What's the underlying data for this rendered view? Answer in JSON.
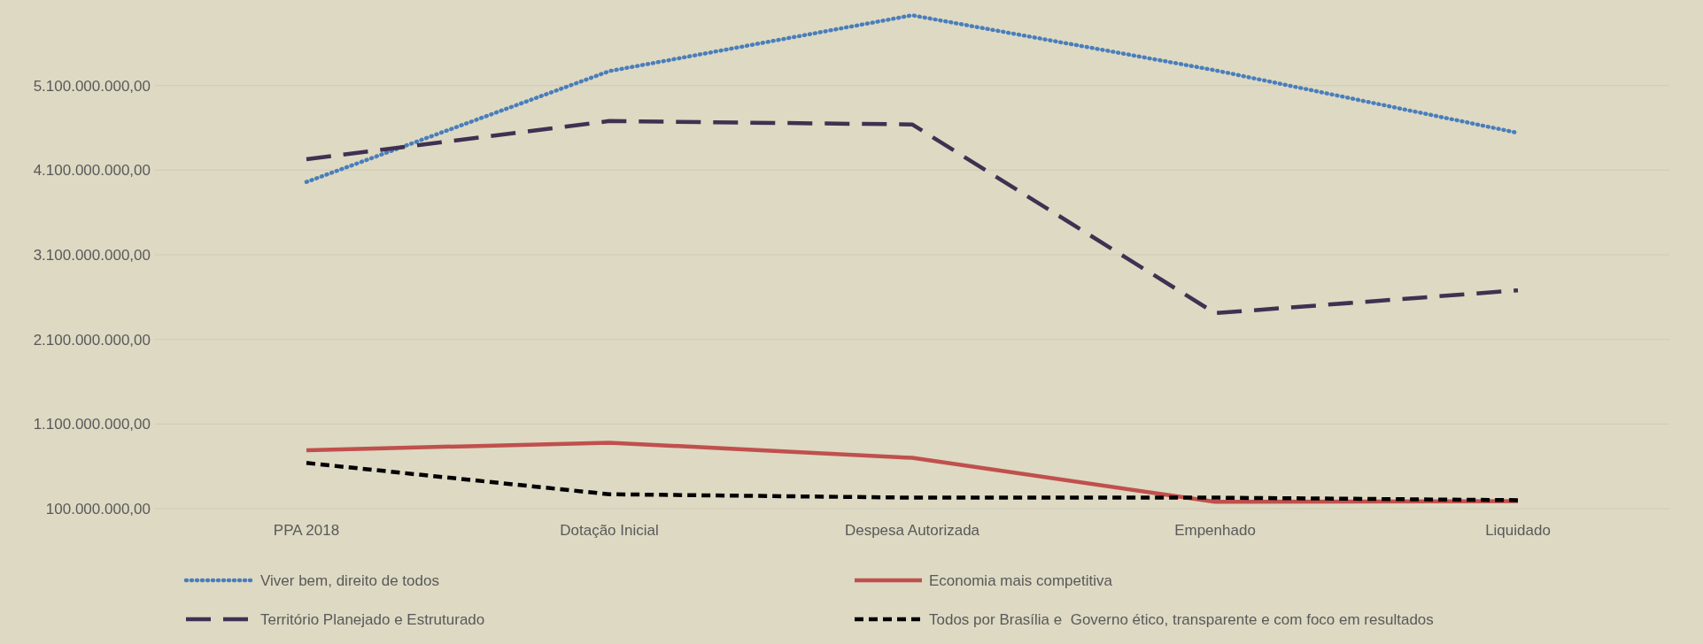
{
  "chart_data": {
    "type": "line",
    "categories": [
      "PPA 2018",
      "Dotação Inicial",
      "Despesa Autorizada",
      "Empenhado",
      "Liquidado"
    ],
    "series": [
      {
        "name": "Viver bem, direito de todos",
        "color": "#4a7ebb",
        "line_style": "dotted",
        "values": [
          3960000000,
          5270000000,
          5930000000,
          5280000000,
          4540000000
        ]
      },
      {
        "name": "Economia mais competitiva",
        "color": "#c0504d",
        "line_style": "solid",
        "values": [
          790000000,
          880000000,
          700000000,
          180000000,
          190000000
        ]
      },
      {
        "name": "Território Planejado e Estruturado",
        "color": "#3f3151",
        "line_style": "longdash",
        "values": [
          4230000000,
          4680000000,
          4640000000,
          2410000000,
          2680000000
        ]
      },
      {
        "name": "Todos por Brasília e  Governo ético, transparente e com foco em resultados",
        "color": "#000000",
        "line_style": "dashed",
        "values": [
          640000000,
          270000000,
          230000000,
          230000000,
          200000000
        ]
      }
    ],
    "ylim": [
      100000000,
      6100000000
    ],
    "yticks": [
      {
        "value": 100000000,
        "label": "100.000.000,00"
      },
      {
        "value": 1100000000,
        "label": "1.100.000.000,00"
      },
      {
        "value": 2100000000,
        "label": "2.100.000.000,00"
      },
      {
        "value": 3100000000,
        "label": "3.100.000.000,00"
      },
      {
        "value": 4100000000,
        "label": "4.100.000.000,00"
      },
      {
        "value": 5100000000,
        "label": "5.100.000.000,00"
      }
    ],
    "grid": "y",
    "legend": "bottom",
    "marker": "none"
  }
}
